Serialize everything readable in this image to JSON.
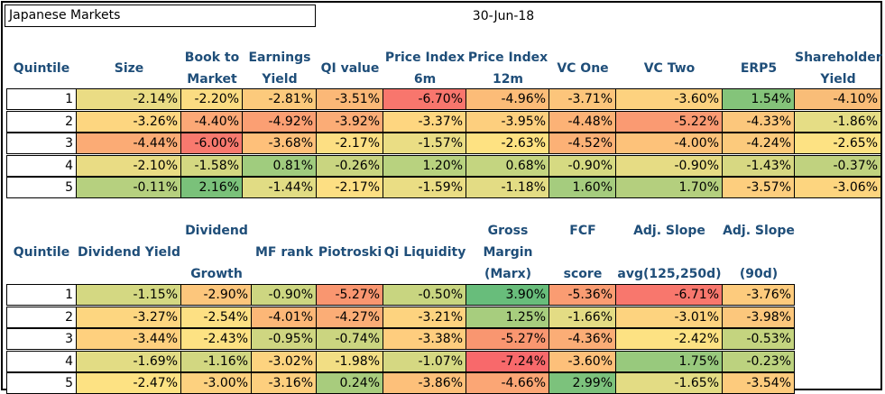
{
  "title": "Japanese Markets",
  "date": "30-Jun-18",
  "table1": {
    "headers": [
      [
        "Quintile"
      ],
      [
        "Size"
      ],
      [
        "Book to",
        "Market"
      ],
      [
        "Earnings",
        "Yield"
      ],
      [
        "QI value"
      ],
      [
        "Price Index",
        "6m"
      ],
      [
        "Price Index",
        "12m"
      ],
      [
        "VC One"
      ],
      [
        "VC Two"
      ],
      [
        "ERP5"
      ],
      [
        "Shareholder",
        "Yield"
      ]
    ],
    "rows": [
      {
        "q": "1",
        "values": [
          "-2.14%",
          "-2.20%",
          "-2.81%",
          "-3.51%",
          "-6.70%",
          "-4.96%",
          "-3.71%",
          "-3.60%",
          "1.54%",
          "-4.10%"
        ],
        "colors": [
          "#eadc84",
          "#fbdc82",
          "#fcca7c",
          "#fbb877",
          "#f8766d",
          "#fcbc78",
          "#fcc57b",
          "#fdd27f",
          "#84c47a",
          "#f9bd78"
        ]
      },
      {
        "q": "2",
        "values": [
          "-3.26%",
          "-4.40%",
          "-4.92%",
          "-3.92%",
          "-3.37%",
          "-3.95%",
          "-4.48%",
          "-5.22%",
          "-4.33%",
          "-1.86%"
        ],
        "colors": [
          "#fdd680",
          "#fca876",
          "#fb9f73",
          "#fbac76",
          "#fed680",
          "#fdcf7e",
          "#fcb276",
          "#fa9a72",
          "#fcc77c",
          "#e5dd85"
        ]
      },
      {
        "q": "3",
        "values": [
          "-4.44%",
          "-6.00%",
          "-3.68%",
          "-2.17%",
          "-1.57%",
          "-2.63%",
          "-4.52%",
          "-4.00%",
          "-4.24%",
          "-2.65%"
        ],
        "colors": [
          "#fbab75",
          "#f8796e",
          "#fec07a",
          "#fddf83",
          "#eadd84",
          "#fee282",
          "#fcb176",
          "#fdc27a",
          "#fcca7c",
          "#fde283"
        ]
      },
      {
        "q": "4",
        "values": [
          "-2.10%",
          "-1.58%",
          "0.81%",
          "-0.26%",
          "1.20%",
          "0.68%",
          "-0.90%",
          "-0.90%",
          "-1.43%",
          "-0.37%"
        ],
        "colors": [
          "#e9dc84",
          "#d4d881",
          "#a0cc7e",
          "#c9d580",
          "#b8d27f",
          "#c4d580",
          "#d6da82",
          "#e6dc84",
          "#d7d882",
          "#c0d27f"
        ]
      },
      {
        "q": "5",
        "values": [
          "-0.11%",
          "2.16%",
          "-1.44%",
          "-2.17%",
          "-1.59%",
          "-1.18%",
          "1.60%",
          "1.70%",
          "-3.57%",
          "-3.06%"
        ],
        "colors": [
          "#b6d07f",
          "#7ac17a",
          "#e1dc84",
          "#fddf83",
          "#eadd84",
          "#e3dc84",
          "#a5cc7e",
          "#b4cf7e",
          "#fdce7e",
          "#fdd57f"
        ]
      }
    ]
  },
  "table2": {
    "headers": [
      [
        "Quintile"
      ],
      [
        "Dividend Yield"
      ],
      [
        "Dividend",
        "",
        "Growth"
      ],
      [
        "MF rank"
      ],
      [
        "Piotroski"
      ],
      [
        "Qi Liquidity"
      ],
      [
        "Gross",
        "Margin",
        "(Marx)"
      ],
      [
        "FCF",
        "",
        "score"
      ],
      [
        "Adj. Slope",
        "",
        "avg(125,250d)"
      ],
      [
        "Adj. Slope",
        "",
        "(90d)"
      ]
    ],
    "rows": [
      {
        "q": "1",
        "values": [
          "-1.15%",
          "-2.90%",
          "-0.90%",
          "-5.27%",
          "-0.50%",
          "3.90%",
          "-5.36%",
          "-6.71%",
          "-3.76%"
        ],
        "colors": [
          "#d4d882",
          "#fcc67c",
          "#cdd681",
          "#f99670",
          "#c8d580",
          "#68bd7b",
          "#fa9c72",
          "#f8776d",
          "#fdcb7d"
        ]
      },
      {
        "q": "2",
        "values": [
          "-3.27%",
          "-2.54%",
          "-4.01%",
          "-4.27%",
          "-3.21%",
          "1.25%",
          "-1.66%",
          "-3.01%",
          "-3.98%"
        ],
        "colors": [
          "#fdd680",
          "#fde083",
          "#fcb777",
          "#fbad76",
          "#fdd37f",
          "#a7cd7e",
          "#e3dc84",
          "#fdd37f",
          "#fcc77c"
        ]
      },
      {
        "q": "3",
        "values": [
          "-3.44%",
          "-2.43%",
          "-0.95%",
          "-0.74%",
          "-3.38%",
          "-5.27%",
          "-4.36%",
          "-2.42%",
          "-0.53%"
        ],
        "colors": [
          "#fed07e",
          "#fde283",
          "#cfd681",
          "#cbd580",
          "#fecd7e",
          "#f99670",
          "#fbad76",
          "#fde283",
          "#c4d47f"
        ]
      },
      {
        "q": "4",
        "values": [
          "-1.69%",
          "-1.16%",
          "-3.02%",
          "-1.98%",
          "-1.07%",
          "-7.24%",
          "-3.60%",
          "1.75%",
          "-0.23%"
        ],
        "colors": [
          "#e2dc84",
          "#d2d781",
          "#fdd37f",
          "#f2de84",
          "#d5d882",
          "#f8696b",
          "#fdc07a",
          "#98c97d",
          "#bcd27f"
        ]
      },
      {
        "q": "5",
        "values": [
          "-2.47%",
          "-3.00%",
          "-3.16%",
          "0.24%",
          "-3.86%",
          "-4.66%",
          "2.99%",
          "-1.65%",
          "-3.54%"
        ],
        "colors": [
          "#fde283",
          "#fdd17f",
          "#fdcf7e",
          "#a8cc7d",
          "#fdc07a",
          "#fba675",
          "#7cc27c",
          "#e3dc84",
          "#fdcb7d"
        ]
      }
    ]
  }
}
